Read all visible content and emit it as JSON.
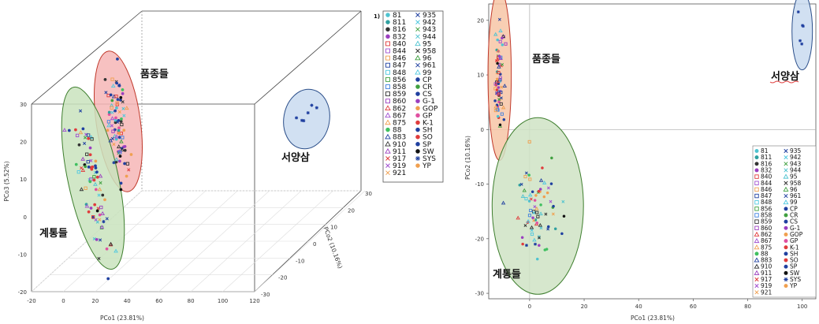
{
  "legend_items": [
    {
      "label": "81",
      "color": "#4fc3d0",
      "shape": "circle"
    },
    {
      "label": "811",
      "color": "#2fa0a0",
      "shape": "circle"
    },
    {
      "label": "816",
      "color": "#333333",
      "shape": "circle"
    },
    {
      "label": "832",
      "color": "#9b3fbf",
      "shape": "circle"
    },
    {
      "label": "840",
      "color": "#e03c3c",
      "shape": "square"
    },
    {
      "label": "844",
      "color": "#a050d0",
      "shape": "square"
    },
    {
      "label": "846",
      "color": "#f0a050",
      "shape": "square"
    },
    {
      "label": "847",
      "color": "#2040a0",
      "shape": "square"
    },
    {
      "label": "848",
      "color": "#50c8e0",
      "shape": "square"
    },
    {
      "label": "856",
      "color": "#40a040",
      "shape": "square"
    },
    {
      "label": "858",
      "color": "#4080e0",
      "shape": "square"
    },
    {
      "label": "859",
      "color": "#333333",
      "shape": "square"
    },
    {
      "label": "860",
      "color": "#9b3fbf",
      "shape": "square"
    },
    {
      "label": "862",
      "color": "#e03c3c",
      "shape": "triangle"
    },
    {
      "label": "867",
      "color": "#a050d0",
      "shape": "triangle"
    },
    {
      "label": "875",
      "color": "#f0a050",
      "shape": "triangle"
    },
    {
      "label": "88",
      "color": "#40c060",
      "shape": "circle"
    },
    {
      "label": "883",
      "color": "#2040a0",
      "shape": "triangle"
    },
    {
      "label": "910",
      "color": "#333333",
      "shape": "triangle"
    },
    {
      "label": "911",
      "color": "#9b3fbf",
      "shape": "triangle"
    },
    {
      "label": "917",
      "color": "#e03c3c",
      "shape": "cross"
    },
    {
      "label": "919",
      "color": "#a050d0",
      "shape": "cross"
    },
    {
      "label": "921",
      "color": "#f0a050",
      "shape": "cross"
    },
    {
      "label": "935",
      "color": "#2040a0",
      "shape": "cross"
    },
    {
      "label": "942",
      "color": "#50c8e0",
      "shape": "cross"
    },
    {
      "label": "943",
      "color": "#40a040",
      "shape": "cross"
    },
    {
      "label": "944",
      "color": "#4fc3d0",
      "shape": "cross"
    },
    {
      "label": "95",
      "color": "#4fc3d0",
      "shape": "triangle"
    },
    {
      "label": "958",
      "color": "#333333",
      "shape": "cross"
    },
    {
      "label": "96",
      "color": "#40a040",
      "shape": "triangle"
    },
    {
      "label": "961",
      "color": "#2040a0",
      "shape": "cross"
    },
    {
      "label": "99",
      "color": "#50c8e0",
      "shape": "triangle"
    },
    {
      "label": "CP",
      "color": "#2040a0",
      "shape": "circle"
    },
    {
      "label": "CR",
      "color": "#40a040",
      "shape": "circle"
    },
    {
      "label": "CS",
      "color": "#2040a0",
      "shape": "circle"
    },
    {
      "label": "G-1",
      "color": "#9b3fbf",
      "shape": "circle"
    },
    {
      "label": "GOP",
      "color": "#f0a050",
      "shape": "circle"
    },
    {
      "label": "GP",
      "color": "#e050a0",
      "shape": "circle"
    },
    {
      "label": "K-1",
      "color": "#e03c3c",
      "shape": "circle"
    },
    {
      "label": "SH",
      "color": "#2040a0",
      "shape": "circle"
    },
    {
      "label": "SO",
      "color": "#e03c3c",
      "shape": "circle"
    },
    {
      "label": "SP",
      "color": "#2040a0",
      "shape": "circle"
    },
    {
      "label": "SW",
      "color": "#111111",
      "shape": "circle"
    },
    {
      "label": "SYS",
      "color": "#2040a0",
      "shape": "star"
    },
    {
      "label": "YP",
      "color": "#f0a050",
      "shape": "circle"
    }
  ],
  "chart_data": [
    {
      "type": "scatter",
      "dimensions": 3,
      "legend_marker": "1)",
      "xlabel": "PCo1 (23.81%)",
      "ylabel": "PCo2 (10.16%)",
      "zlabel": "PCo3 (5.52%)",
      "x_ticks": [
        "-20",
        "0",
        "20",
        "40",
        "60",
        "80",
        "100",
        "120"
      ],
      "y_ticks": [
        "-30",
        "-20",
        "-10",
        "0",
        "10",
        "20",
        "30"
      ],
      "z_ticks": [
        "-20",
        "-10",
        "0",
        "10",
        "20",
        "30"
      ],
      "xlim": [
        -20,
        120
      ],
      "ylim": [
        -30,
        30
      ],
      "zlim": [
        -20,
        30
      ],
      "groups": [
        {
          "label": "품종들",
          "fill": "#f6b6b6",
          "stroke": "#c0392b"
        },
        {
          "label": "계통들",
          "fill": "#c9e3bd",
          "stroke": "#3f7f2f"
        },
        {
          "label": "서양삼",
          "fill": "#c9daf0",
          "stroke": "#2c4f8a"
        }
      ]
    },
    {
      "type": "scatter",
      "dimensions": 2,
      "xlabel": "PCo1 (23.81%)",
      "ylabel": "PCo2 (10.16%)",
      "x_ticks": [
        "0",
        "20",
        "40",
        "60",
        "80",
        "100"
      ],
      "y_ticks": [
        "-30",
        "-20",
        "-10",
        "0",
        "10",
        "20"
      ],
      "xlim": [
        -15,
        105
      ],
      "ylim": [
        -31,
        23
      ],
      "reference_lines": {
        "x": 0,
        "y": 0
      },
      "groups": [
        {
          "label": "품종들",
          "fill": "#f7c6a6",
          "stroke": "#c0392b"
        },
        {
          "label": "계통들",
          "fill": "#cfe3c4",
          "stroke": "#3f7f2f"
        },
        {
          "label": "서양삼",
          "fill": "#c9daf0",
          "stroke": "#2c4f8a",
          "label_underline": "#e03c3c"
        }
      ],
      "clusters": [
        {
          "group": 0,
          "cx": -11,
          "cy": 10,
          "sx": 1.2,
          "sy": 5.8,
          "n": 70
        },
        {
          "group": 1,
          "cx": 3,
          "cy": -14,
          "sx": 6,
          "sy": 6,
          "n": 75
        },
        {
          "group": 2,
          "cx": 100,
          "cy": 18,
          "sx": 1,
          "sy": 2.5,
          "n": 5
        }
      ]
    }
  ]
}
